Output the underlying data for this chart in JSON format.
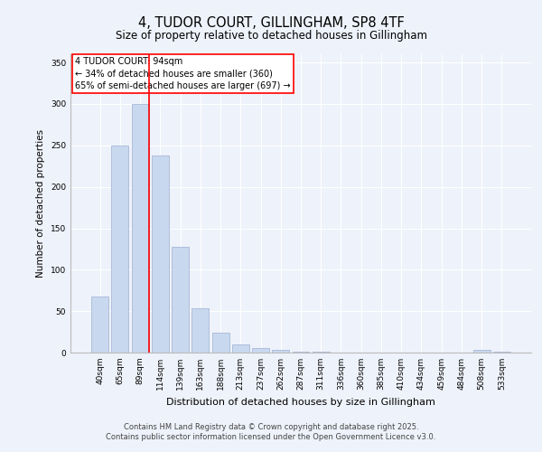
{
  "title_line1": "4, TUDOR COURT, GILLINGHAM, SP8 4TF",
  "title_line2": "Size of property relative to detached houses in Gillingham",
  "xlabel": "Distribution of detached houses by size in Gillingham",
  "ylabel": "Number of detached properties",
  "categories": [
    "40sqm",
    "65sqm",
    "89sqm",
    "114sqm",
    "139sqm",
    "163sqm",
    "188sqm",
    "213sqm",
    "237sqm",
    "262sqm",
    "287sqm",
    "311sqm",
    "336sqm",
    "360sqm",
    "385sqm",
    "410sqm",
    "434sqm",
    "459sqm",
    "484sqm",
    "508sqm",
    "533sqm"
  ],
  "values": [
    68,
    250,
    300,
    238,
    128,
    53,
    24,
    10,
    5,
    3,
    1,
    1,
    0,
    0,
    0,
    0,
    0,
    0,
    0,
    3,
    1
  ],
  "bar_color": "#c8d8ee",
  "bar_edge_color": "#a8b8d8",
  "red_line_index": 2,
  "annotation_title": "4 TUDOR COURT: 94sqm",
  "annotation_line1": "← 34% of detached houses are smaller (360)",
  "annotation_line2": "65% of semi-detached houses are larger (697) →",
  "ylim": [
    0,
    360
  ],
  "yticks": [
    0,
    50,
    100,
    150,
    200,
    250,
    300,
    350
  ],
  "footer_line1": "Contains HM Land Registry data © Crown copyright and database right 2025.",
  "footer_line2": "Contains public sector information licensed under the Open Government Licence v3.0.",
  "bg_color": "#eef2fa"
}
